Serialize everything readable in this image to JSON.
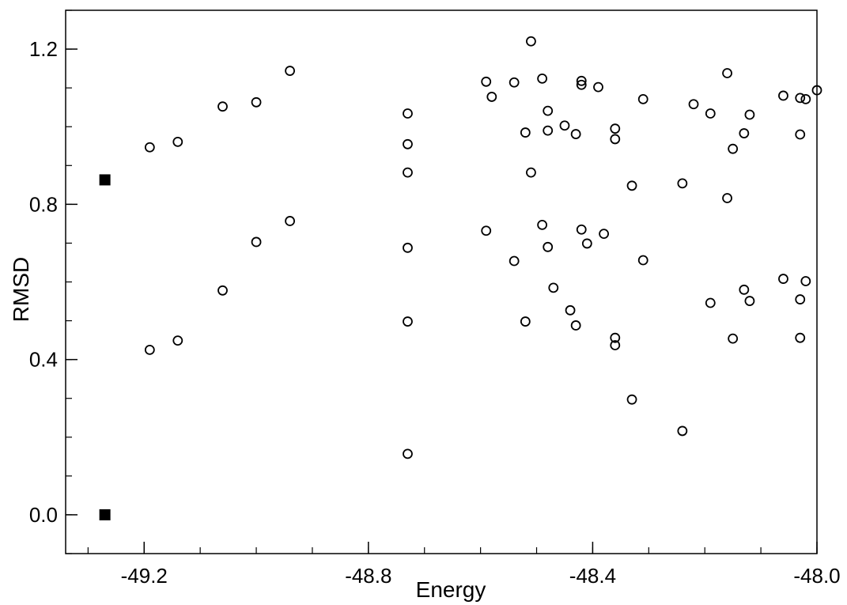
{
  "chart_data": {
    "type": "scatter",
    "xlabel": "Energy",
    "ylabel": "RMSD",
    "xlim": [
      -49.34,
      -48.0
    ],
    "ylim": [
      -0.1,
      1.3
    ],
    "x_ticks": [
      {
        "value": -49.2,
        "label": "-49.2"
      },
      {
        "value": -48.8,
        "label": "-48.8"
      },
      {
        "value": -48.4,
        "label": "-48.4"
      },
      {
        "value": -48.0,
        "label": "-48.0"
      }
    ],
    "y_ticks": [
      {
        "value": 0.0,
        "label": "0.0"
      },
      {
        "value": 0.4,
        "label": "0.4"
      },
      {
        "value": 0.8,
        "label": "0.8"
      },
      {
        "value": 1.2,
        "label": "1.2"
      }
    ],
    "x_minor_step": 0.1,
    "y_minor_step": 0.1,
    "grid": false,
    "series": [
      {
        "marker": "open-circle",
        "color": "#000000",
        "points": [
          [
            -49.19,
            0.947
          ],
          [
            -49.14,
            0.961
          ],
          [
            -49.06,
            1.052
          ],
          [
            -49.0,
            1.063
          ],
          [
            -48.94,
            1.144
          ],
          [
            -49.19,
            0.425
          ],
          [
            -49.14,
            0.449
          ],
          [
            -49.06,
            0.578
          ],
          [
            -49.0,
            0.703
          ],
          [
            -48.94,
            0.757
          ],
          [
            -48.73,
            1.034
          ],
          [
            -48.73,
            0.955
          ],
          [
            -48.73,
            0.882
          ],
          [
            -48.73,
            0.688
          ],
          [
            -48.73,
            0.498
          ],
          [
            -48.73,
            0.157
          ],
          [
            -48.59,
            1.116
          ],
          [
            -48.58,
            1.077
          ],
          [
            -48.54,
            1.114
          ],
          [
            -48.52,
            0.985
          ],
          [
            -48.51,
            1.22
          ],
          [
            -48.51,
            0.882
          ],
          [
            -48.49,
            1.124
          ],
          [
            -48.48,
            1.041
          ],
          [
            -48.48,
            0.99
          ],
          [
            -48.45,
            1.003
          ],
          [
            -48.43,
            0.981
          ],
          [
            -48.42,
            1.118
          ],
          [
            -48.42,
            1.108
          ],
          [
            -48.39,
            1.102
          ],
          [
            -48.36,
            0.995
          ],
          [
            -48.36,
            0.968
          ],
          [
            -48.31,
            1.071
          ],
          [
            -48.22,
            1.058
          ],
          [
            -48.19,
            1.034
          ],
          [
            -48.16,
            1.138
          ],
          [
            -48.15,
            0.943
          ],
          [
            -48.13,
            0.983
          ],
          [
            -48.12,
            1.031
          ],
          [
            -48.06,
            1.08
          ],
          [
            -48.03,
            0.98
          ],
          [
            -48.03,
            1.074
          ],
          [
            -48.02,
            1.071
          ],
          [
            -48.0,
            1.094
          ],
          [
            -48.33,
            0.848
          ],
          [
            -48.24,
            0.854
          ],
          [
            -48.16,
            0.816
          ],
          [
            -48.59,
            0.732
          ],
          [
            -48.54,
            0.654
          ],
          [
            -48.52,
            0.498
          ],
          [
            -48.49,
            0.747
          ],
          [
            -48.48,
            0.69
          ],
          [
            -48.47,
            0.585
          ],
          [
            -48.44,
            0.527
          ],
          [
            -48.43,
            0.488
          ],
          [
            -48.42,
            0.735
          ],
          [
            -48.41,
            0.699
          ],
          [
            -48.38,
            0.724
          ],
          [
            -48.36,
            0.456
          ],
          [
            -48.36,
            0.437
          ],
          [
            -48.33,
            0.297
          ],
          [
            -48.31,
            0.656
          ],
          [
            -48.24,
            0.216
          ],
          [
            -48.19,
            0.546
          ],
          [
            -48.15,
            0.454
          ],
          [
            -48.13,
            0.58
          ],
          [
            -48.12,
            0.551
          ],
          [
            -48.06,
            0.608
          ],
          [
            -48.03,
            0.555
          ],
          [
            -48.03,
            0.456
          ],
          [
            -48.02,
            0.602
          ]
        ]
      },
      {
        "marker": "filled-square",
        "color": "#000000",
        "points": [
          [
            -49.27,
            0.863
          ],
          [
            -49.27,
            0.0
          ]
        ]
      }
    ]
  }
}
